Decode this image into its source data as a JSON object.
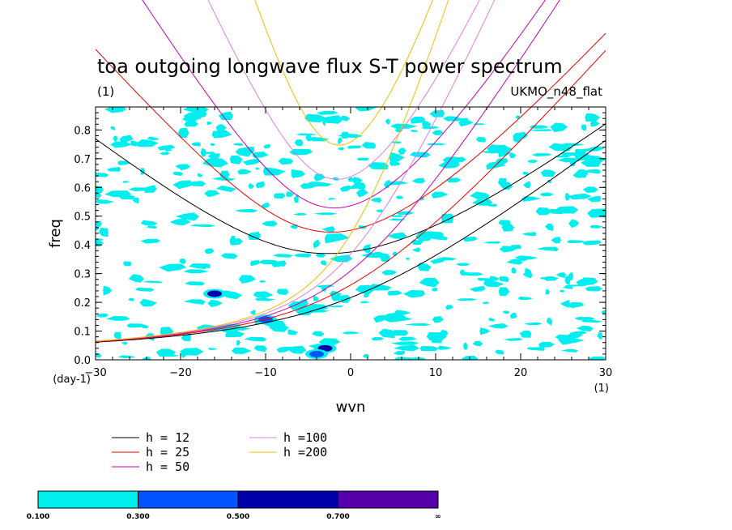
{
  "chart_data": {
    "type": "contour",
    "title": "toa outgoing longwave flux S-T power spectrum",
    "subtitle_left": "(1)",
    "subtitle_right": "UKMO_n48_flat",
    "xlabel": "wvn",
    "ylabel": "freq",
    "x_unit_label": "(1)",
    "y_unit_label": "(day-1)",
    "xlim": [
      -30,
      30
    ],
    "ylim": [
      0,
      0.88
    ],
    "x_ticks": [
      -30,
      -20,
      -10,
      0,
      10,
      20,
      30
    ],
    "x_tick_labels": [
      "−30",
      "−20",
      "−10",
      "0",
      "10",
      "20",
      "30"
    ],
    "y_ticks": [
      0.0,
      0.1,
      0.2,
      0.3,
      0.4,
      0.5,
      0.6,
      0.7,
      0.8
    ],
    "y_tick_labels": [
      "0.0",
      "0.1",
      "0.2",
      "0.3",
      "0.4",
      "0.5",
      "0.6",
      "0.7",
      "0.8"
    ],
    "dispersion_curves": [
      {
        "label": "h = 12",
        "h": 12,
        "color": "#000000"
      },
      {
        "label": "h = 25",
        "h": 25,
        "color": "#ee0000"
      },
      {
        "label": "h = 50",
        "h": 50,
        "color": "#cc00aa"
      },
      {
        "label": "h =100",
        "h": 100,
        "color": "#e080e0"
      },
      {
        "label": "h =200",
        "h": 200,
        "color": "#f0c000"
      }
    ],
    "colorbar": {
      "levels": [
        "0.100",
        "0.300",
        "0.500",
        "0.700",
        "∞"
      ],
      "colors": [
        "#00eeee",
        "#0055ff",
        "#0000aa",
        "#5500aa"
      ]
    },
    "notable_power_patches": [
      {
        "x": -3.0,
        "y": 0.04,
        "level": 3
      },
      {
        "x": -4.0,
        "y": 0.02,
        "level": 2
      },
      {
        "x": -16.0,
        "y": 0.23,
        "level": 3
      },
      {
        "x": -10.0,
        "y": 0.14,
        "level": 2
      }
    ]
  }
}
